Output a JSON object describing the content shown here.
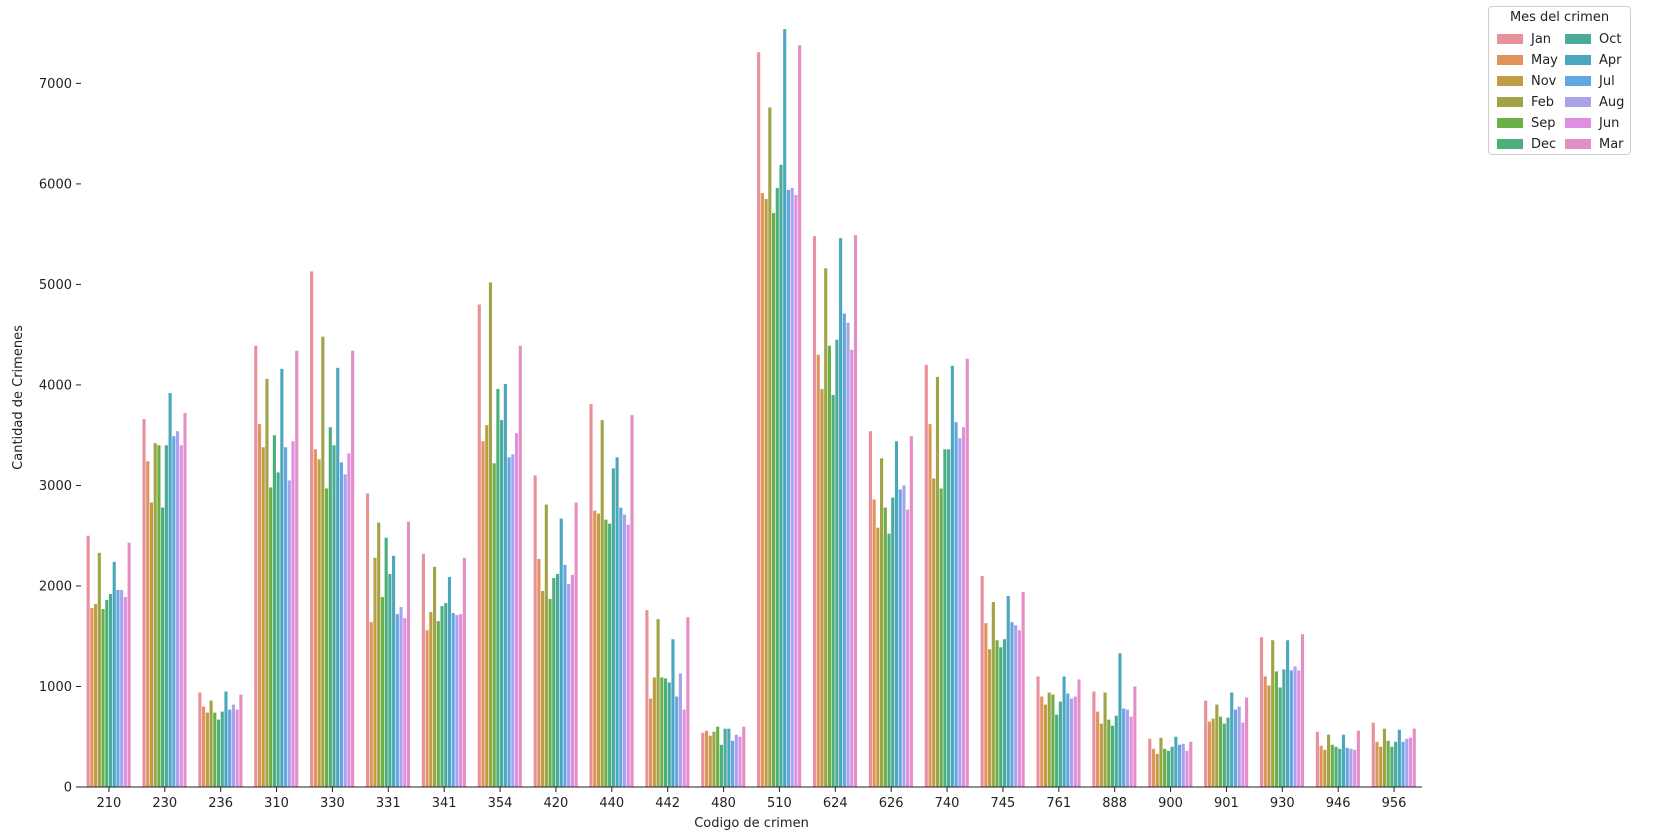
{
  "chart_data": {
    "type": "bar",
    "xlabel": "Codigo de crimen",
    "ylabel": "Cantidad de Crimenes",
    "ylim": [
      0,
      7750
    ],
    "yticks": [
      0,
      1000,
      2000,
      3000,
      4000,
      5000,
      6000,
      7000
    ],
    "grid": false,
    "legend_position": "top-right",
    "legend_title": "Mes del crimen",
    "categories": [
      "210",
      "230",
      "236",
      "310",
      "330",
      "331",
      "341",
      "354",
      "420",
      "440",
      "442",
      "480",
      "510",
      "624",
      "626",
      "740",
      "745",
      "761",
      "888",
      "900",
      "901",
      "930",
      "946",
      "956"
    ],
    "series": [
      {
        "name": "Jan",
        "color": "#e8919c",
        "values": [
          2500,
          3660,
          940,
          4390,
          5130,
          2920,
          2320,
          4800,
          3100,
          3810,
          1760,
          540,
          7310,
          5480,
          3540,
          4200,
          2100,
          1100,
          950,
          480,
          860,
          1490,
          550,
          640
        ]
      },
      {
        "name": "May",
        "color": "#e0935a",
        "values": [
          1780,
          3240,
          800,
          3610,
          3360,
          1640,
          1560,
          3440,
          2270,
          2750,
          880,
          560,
          5910,
          4300,
          2860,
          3610,
          1630,
          900,
          750,
          380,
          650,
          1100,
          410,
          450
        ]
      },
      {
        "name": "Nov",
        "color": "#bf9d46",
        "values": [
          1820,
          2830,
          740,
          3380,
          3260,
          2280,
          1740,
          3600,
          1950,
          2720,
          1090,
          510,
          5850,
          3960,
          2580,
          3070,
          1370,
          820,
          630,
          330,
          680,
          1010,
          370,
          400
        ]
      },
      {
        "name": "Feb",
        "color": "#a0a446",
        "values": [
          2330,
          3420,
          860,
          4060,
          4480,
          2630,
          2190,
          5020,
          2810,
          3650,
          1670,
          550,
          6760,
          5160,
          3270,
          4080,
          1840,
          940,
          940,
          490,
          820,
          1460,
          520,
          580
        ]
      },
      {
        "name": "Sep",
        "color": "#6aaf47",
        "values": [
          1770,
          3400,
          740,
          2980,
          2970,
          1890,
          1650,
          3220,
          1870,
          2660,
          1090,
          600,
          5710,
          4390,
          2780,
          2970,
          1460,
          920,
          670,
          380,
          700,
          1150,
          420,
          460
        ]
      },
      {
        "name": "Dec",
        "color": "#4cae7a",
        "values": [
          1860,
          2780,
          670,
          3500,
          3580,
          2480,
          1800,
          3960,
          2080,
          2620,
          1080,
          420,
          5960,
          3900,
          2520,
          3360,
          1390,
          720,
          610,
          360,
          630,
          990,
          400,
          400
        ]
      },
      {
        "name": "Oct",
        "color": "#4aab9a",
        "values": [
          1920,
          3400,
          750,
          3130,
          3400,
          2120,
          1830,
          3650,
          2120,
          3170,
          1040,
          580,
          6190,
          4450,
          2880,
          3360,
          1470,
          850,
          710,
          400,
          690,
          1170,
          380,
          450
        ]
      },
      {
        "name": "Apr",
        "color": "#4ca7be",
        "values": [
          2240,
          3920,
          950,
          4160,
          4170,
          2300,
          2090,
          4010,
          2670,
          3280,
          1470,
          580,
          7540,
          5460,
          3440,
          4190,
          1900,
          1100,
          1330,
          500,
          940,
          1460,
          520,
          570
        ]
      },
      {
        "name": "Jul",
        "color": "#62a7e3",
        "values": [
          1960,
          3490,
          770,
          3380,
          3230,
          1720,
          1730,
          3280,
          2210,
          2780,
          900,
          460,
          5940,
          4710,
          2960,
          3630,
          1640,
          930,
          780,
          420,
          770,
          1160,
          390,
          450
        ]
      },
      {
        "name": "Aug",
        "color": "#a9a3ea",
        "values": [
          1960,
          3540,
          820,
          3050,
          3110,
          1790,
          1710,
          3310,
          2020,
          2710,
          1130,
          520,
          5960,
          4620,
          3000,
          3470,
          1610,
          880,
          770,
          430,
          800,
          1200,
          380,
          480
        ]
      },
      {
        "name": "Jun",
        "color": "#df8fe2",
        "values": [
          1890,
          3400,
          770,
          3440,
          3320,
          1680,
          1720,
          3520,
          2110,
          2610,
          770,
          500,
          5890,
          4350,
          2760,
          3580,
          1560,
          900,
          700,
          360,
          640,
          1160,
          370,
          490
        ]
      },
      {
        "name": "Mar",
        "color": "#e58ec5",
        "values": [
          2430,
          3720,
          920,
          4340,
          4340,
          2640,
          2280,
          4390,
          2830,
          3700,
          1690,
          600,
          7380,
          5490,
          3490,
          4260,
          1940,
          1070,
          1000,
          450,
          890,
          1520,
          560,
          580
        ]
      }
    ]
  }
}
